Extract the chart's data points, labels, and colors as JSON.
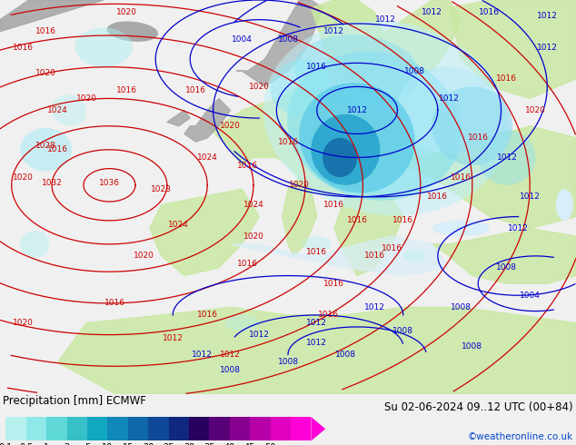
{
  "title_left": "Precipitation [mm] ECMWF",
  "title_right": "Su 02-06-2024 09..12 UTC (00+84)",
  "watermark": "©weatheronline.co.uk",
  "colorbar_labels": [
    "0.1",
    "0.5",
    "1",
    "2",
    "5",
    "10",
    "15",
    "20",
    "25",
    "30",
    "35",
    "40",
    "45",
    "50"
  ],
  "colorbar_colors": [
    "#b8f0f0",
    "#90e8e8",
    "#60d8d8",
    "#38c0c8",
    "#10a8c0",
    "#1088b8",
    "#1068a8",
    "#104898",
    "#102880",
    "#280060",
    "#580078",
    "#880090",
    "#b800a8",
    "#e000c0",
    "#ff00d8"
  ],
  "ocean_color": "#d8eef8",
  "land_color": "#c8e8a0",
  "gray_color": "#a8a8a8",
  "atlantic_color": "#e8f4f8",
  "fig_width": 6.34,
  "fig_height": 4.9,
  "dpi": 100,
  "cb_label_fontsize": 7,
  "title_fontsize": 8.5,
  "watermark_color": "#0044cc",
  "watermark_fontsize": 7.5,
  "isobar_label_fontsize": 6.5,
  "red_line_color": "#cc0000",
  "blue_line_color": "#0000cc"
}
